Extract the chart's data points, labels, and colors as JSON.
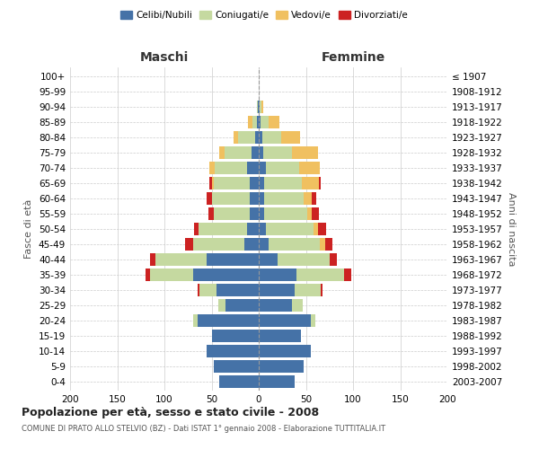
{
  "age_groups": [
    "0-4",
    "5-9",
    "10-14",
    "15-19",
    "20-24",
    "25-29",
    "30-34",
    "35-39",
    "40-44",
    "45-49",
    "50-54",
    "55-59",
    "60-64",
    "65-69",
    "70-74",
    "75-79",
    "80-84",
    "85-89",
    "90-94",
    "95-99",
    "100+"
  ],
  "birth_years": [
    "2003-2007",
    "1998-2002",
    "1993-1997",
    "1988-1992",
    "1983-1987",
    "1978-1982",
    "1973-1977",
    "1968-1972",
    "1963-1967",
    "1958-1962",
    "1953-1957",
    "1948-1952",
    "1943-1947",
    "1938-1942",
    "1933-1937",
    "1928-1932",
    "1923-1927",
    "1918-1922",
    "1913-1917",
    "1908-1912",
    "≤ 1907"
  ],
  "maschi": {
    "celibi": [
      42,
      48,
      55,
      50,
      65,
      35,
      45,
      70,
      55,
      15,
      12,
      10,
      10,
      10,
      12,
      8,
      4,
      2,
      1,
      0,
      0
    ],
    "coniugati": [
      0,
      0,
      0,
      0,
      5,
      8,
      18,
      45,
      55,
      55,
      52,
      38,
      40,
      38,
      35,
      28,
      18,
      5,
      1,
      0,
      0
    ],
    "vedovi": [
      0,
      0,
      0,
      0,
      0,
      0,
      0,
      0,
      0,
      0,
      0,
      0,
      0,
      2,
      5,
      6,
      5,
      4,
      0,
      0,
      0
    ],
    "divorziati": [
      0,
      0,
      0,
      0,
      0,
      0,
      2,
      5,
      5,
      8,
      5,
      5,
      5,
      2,
      0,
      0,
      0,
      0,
      0,
      0,
      0
    ]
  },
  "femmine": {
    "nubili": [
      38,
      48,
      55,
      45,
      55,
      35,
      38,
      40,
      20,
      10,
      8,
      6,
      6,
      6,
      8,
      5,
      4,
      2,
      1,
      0,
      0
    ],
    "coniugate": [
      0,
      0,
      0,
      0,
      5,
      12,
      28,
      50,
      55,
      55,
      50,
      45,
      42,
      40,
      35,
      30,
      20,
      8,
      2,
      0,
      0
    ],
    "vedove": [
      0,
      0,
      0,
      0,
      0,
      0,
      0,
      0,
      0,
      5,
      5,
      5,
      8,
      18,
      22,
      28,
      20,
      12,
      2,
      0,
      0
    ],
    "divorziate": [
      0,
      0,
      0,
      0,
      0,
      0,
      2,
      8,
      8,
      8,
      8,
      8,
      5,
      2,
      0,
      0,
      0,
      0,
      0,
      0,
      0
    ]
  },
  "colors": {
    "celibi_nubili": "#4572a7",
    "coniugati": "#c5d9a0",
    "vedovi": "#f0c060",
    "divorziati": "#cc2222"
  },
  "xlim": [
    -200,
    200
  ],
  "xticks": [
    -200,
    -150,
    -100,
    -50,
    0,
    50,
    100,
    150,
    200
  ],
  "xtick_labels": [
    "200",
    "150",
    "100",
    "50",
    "0",
    "50",
    "100",
    "150",
    "200"
  ],
  "title": "Popolazione per età, sesso e stato civile - 2008",
  "subtitle": "COMUNE DI PRATO ALLO STELVIO (BZ) - Dati ISTAT 1° gennaio 2008 - Elaborazione TUTTITALIA.IT",
  "ylabel_left": "Fasce di età",
  "ylabel_right": "Anni di nascita",
  "maschi_label": "Maschi",
  "femmine_label": "Femmine",
  "legend_labels": [
    "Celibi/Nubili",
    "Coniugati/e",
    "Vedovi/e",
    "Divorziati/e"
  ],
  "bg_color": "#ffffff",
  "grid_color": "#cccccc"
}
